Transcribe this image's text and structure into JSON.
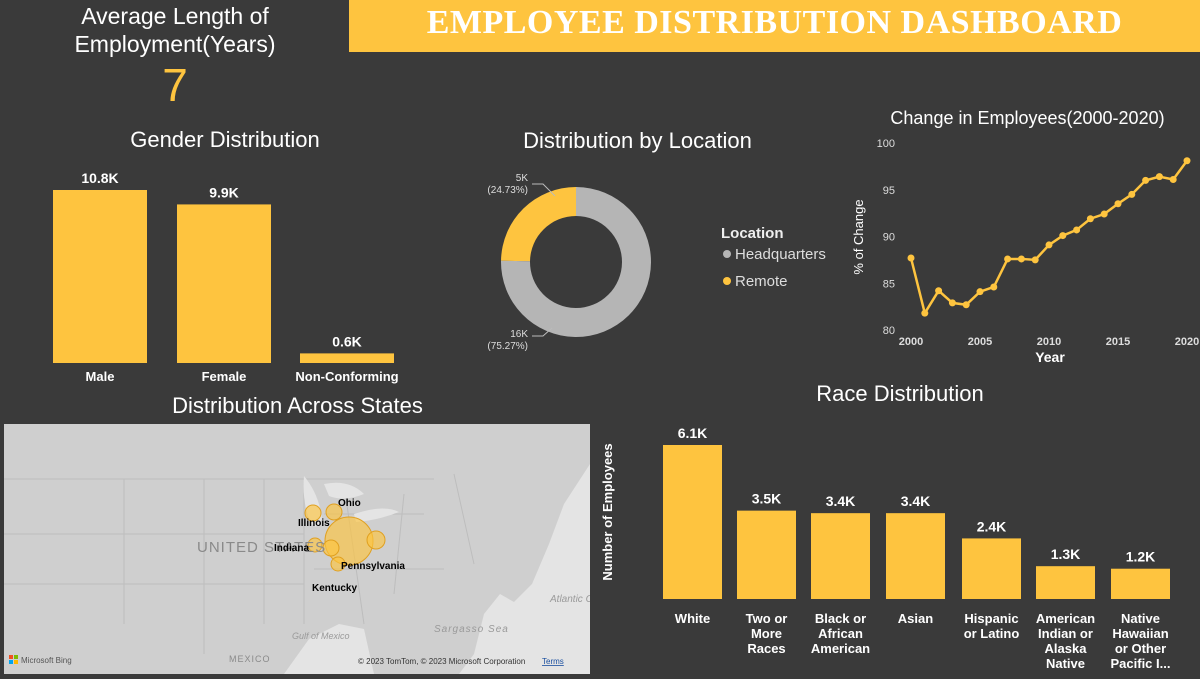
{
  "header": {
    "title": "EMPLOYEE DISTRIBUTION DASHBOARD",
    "kpi_label": "Average Length of Employment(Years)",
    "kpi_value": "7"
  },
  "colors": {
    "accent": "#fec43f",
    "background": "#3a3a3a",
    "grey": "#b5b5b5"
  },
  "chart_data": [
    {
      "id": "gender",
      "type": "bar",
      "title": "Gender Distribution",
      "categories": [
        "Male",
        "Female",
        "Non-Conforming"
      ],
      "values": [
        10.8,
        9.9,
        0.6
      ],
      "data_labels": [
        "10.8K",
        "9.9K",
        "0.6K"
      ],
      "unit": "K"
    },
    {
      "id": "location",
      "type": "pie",
      "title": "Distribution by Location",
      "legend_title": "Location",
      "legend_position": "right",
      "slices": [
        {
          "name": "Headquarters",
          "value": 16,
          "percent": 75.27,
          "label": "16K",
          "pct_label": "(75.27%)",
          "color": "#b5b5b5"
        },
        {
          "name": "Remote",
          "value": 5,
          "percent": 24.73,
          "label": "5K",
          "pct_label": "(24.73%)",
          "color": "#fec43f"
        }
      ]
    },
    {
      "id": "change",
      "type": "line",
      "title": "Change in Employees(2000-2020)",
      "xlabel": "Year",
      "ylabel": "% of Change",
      "x": [
        2000,
        2001,
        2002,
        2003,
        2004,
        2005,
        2006,
        2007,
        2008,
        2009,
        2010,
        2011,
        2012,
        2013,
        2014,
        2015,
        2016,
        2017,
        2018,
        2019,
        2020
      ],
      "y": [
        87.7,
        81.8,
        84.2,
        82.9,
        82.7,
        84.1,
        84.6,
        87.6,
        87.6,
        87.5,
        89.1,
        90.1,
        90.7,
        91.9,
        92.4,
        93.5,
        94.5,
        96.0,
        96.4,
        96.1,
        98.1
      ],
      "xticks": [
        "2000",
        "2005",
        "2010",
        "2015",
        "2020"
      ],
      "xtick_values": [
        2000,
        2005,
        2010,
        2015,
        2020
      ],
      "yticks": [
        "80",
        "85",
        "90",
        "95",
        "100"
      ],
      "ytick_values": [
        80,
        85,
        90,
        95,
        100
      ],
      "xlim": [
        2000,
        2020
      ],
      "ylim": [
        80,
        100
      ]
    },
    {
      "id": "race",
      "type": "bar",
      "title": "Race Distribution",
      "ylabel": "Number of Employees",
      "categories": [
        [
          "White"
        ],
        [
          "Two or",
          "More",
          "Races"
        ],
        [
          "Black or",
          "African",
          "American"
        ],
        [
          "Asian"
        ],
        [
          "Hispanic",
          "or Latino"
        ],
        [
          "American",
          "Indian or",
          "Alaska",
          "Native"
        ],
        [
          "Native",
          "Hawaiian",
          "or Other",
          "Pacific I..."
        ]
      ],
      "values": [
        6.1,
        3.5,
        3.4,
        3.4,
        2.4,
        1.3,
        1.2
      ],
      "data_labels": [
        "6.1K",
        "3.5K",
        "3.4K",
        "3.4K",
        "2.4K",
        "1.3K",
        "1.2K"
      ],
      "unit": "K"
    }
  ],
  "map": {
    "title": "Distribution Across States",
    "country_label": "UNITED STATES",
    "ocean_label": "Atlantic Ocean",
    "sea_label": "Sargasso Sea",
    "gulf_label": "Gulf of Mexico",
    "mexico_label": "MEXICO",
    "brand": "Microsoft Bing",
    "copyright": "© 2023 TomTom, © 2023 Microsoft Corporation",
    "terms": "Terms",
    "states": [
      "Ohio",
      "Illinois",
      "Indiana",
      "Pennsylvania",
      "Kentucky"
    ]
  }
}
